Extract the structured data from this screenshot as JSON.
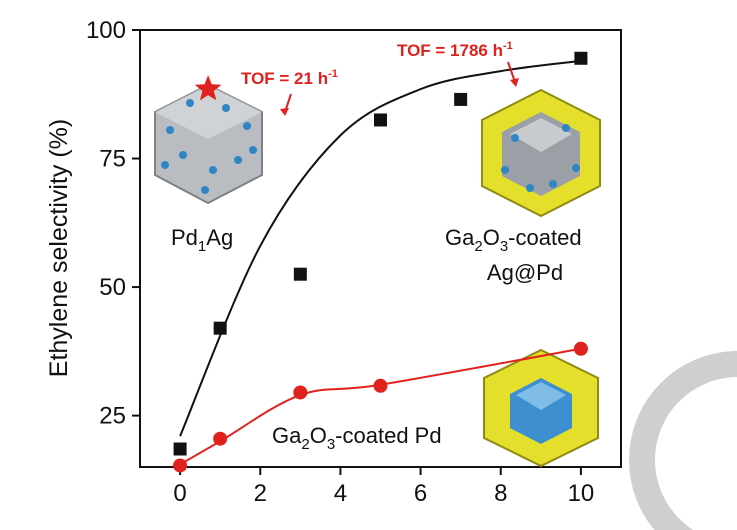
{
  "chart_data": {
    "type": "scatter",
    "ylabel": "Ethylene selectivity (%)",
    "xlim": [
      -1,
      11
    ],
    "ylim": [
      15,
      100
    ],
    "xticks": [
      0,
      2,
      4,
      6,
      8,
      10
    ],
    "yticks": [
      25,
      50,
      75,
      100
    ],
    "grid": false,
    "series": [
      {
        "color": "#111111",
        "marker": "square",
        "x": [
          0,
          1,
          3,
          5,
          7,
          10
        ],
        "y": [
          18.5,
          42,
          52.5,
          82.5,
          86.5,
          94.5
        ],
        "fit": [
          [
            0,
            21
          ],
          [
            2,
            58
          ],
          [
            4,
            79.5
          ],
          [
            6,
            88.5
          ],
          [
            8,
            92
          ],
          [
            10,
            94
          ]
        ]
      },
      {
        "color": "#e0211d",
        "marker": "circle",
        "x": [
          0,
          1,
          3,
          5,
          10
        ],
        "y": [
          15.3,
          20.5,
          29.5,
          30.8,
          38
        ],
        "fit": [
          [
            0,
            15.5
          ],
          [
            1,
            20
          ],
          [
            3,
            29
          ],
          [
            5,
            31
          ],
          [
            10,
            38
          ]
        ]
      }
    ],
    "annotations": {
      "pd1ag": {
        "main": "Pd",
        "sub": "1",
        "rest": "Ag"
      },
      "coated_agpd": {
        "line1_a": "Ga",
        "sub1": "2",
        "line1_b": "O",
        "sub2": "3",
        "line1_c": "-coated",
        "line2": "Ag@Pd"
      },
      "coated_pd": {
        "a": "Ga",
        "sub1": "2",
        "b": "O",
        "sub2": "3",
        "c": "-coated Pd"
      },
      "tof_pd1ag": {
        "text": "TOF = 21 h",
        "sup": "-1"
      },
      "tof_agpd": {
        "text": "TOF = 1786 h",
        "sup": "-1"
      }
    },
    "star": {
      "x": 0.7,
      "y": 88.5,
      "color": "#e0211d"
    }
  }
}
